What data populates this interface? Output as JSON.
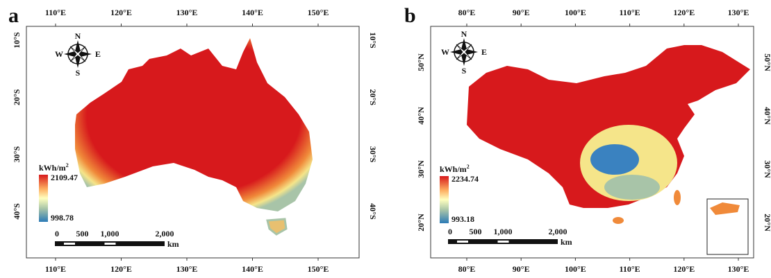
{
  "panels": [
    {
      "label": "a",
      "top_ticks": [
        "110°E",
        "120°E",
        "130°E",
        "140°E",
        "150°E"
      ],
      "bottom_ticks": [
        "110°E",
        "120°E",
        "130°E",
        "140°E",
        "150°E"
      ],
      "left_ticks": [
        "10°S",
        "20°S",
        "30°S",
        "40°S"
      ],
      "right_ticks": [
        "10°S",
        "20°S",
        "30°S",
        "40°S"
      ],
      "legend": {
        "unit": "kWh/m",
        "unit_sup": "2",
        "max": 2109.47,
        "min": 998.78
      },
      "compass": {
        "n": "N",
        "e": "E",
        "s": "S",
        "w": "W"
      },
      "scale": {
        "ticks": [
          0,
          500,
          {
            "value": 1000,
            "label": "1,000"
          },
          {
            "value": 2000,
            "label": "2,000"
          }
        ],
        "unit": "km"
      }
    },
    {
      "label": "b",
      "top_ticks": [
        "80°E",
        "90°E",
        "100°E",
        "110°E",
        "120°E",
        "130°E"
      ],
      "bottom_ticks": [
        "80°E",
        "90°E",
        "100°E",
        "110°E",
        "120°E",
        "130°E"
      ],
      "left_ticks": [
        "50°N",
        "40°N",
        "30°N",
        "20°N"
      ],
      "right_ticks": [
        "50°N",
        "40°N",
        "30°N",
        "20°N"
      ],
      "legend": {
        "unit": "kWh/m",
        "unit_sup": "2",
        "max": 2234.74,
        "min": 993.18
      },
      "compass": {
        "n": "N",
        "e": "E",
        "s": "S",
        "w": "W"
      },
      "scale": {
        "ticks": [
          0,
          500,
          {
            "value": 1000,
            "label": "1,000"
          },
          {
            "value": 2000,
            "label": "2,000"
          }
        ],
        "unit": "km"
      }
    }
  ]
}
